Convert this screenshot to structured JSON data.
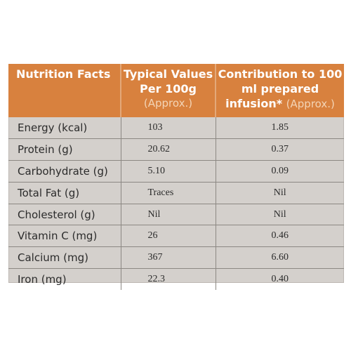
{
  "headers": {
    "col1": "Nutrition Facts",
    "col2_main": "Typical Values Per 100g",
    "col2_sub": "(Approx.)",
    "col3_main": "Contribution to 100 ml prepared infusion*",
    "col3_sub": "(Approx.)"
  },
  "rows": [
    {
      "name": "Energy (kcal)",
      "per_100g": "103",
      "per_100ml": "1.85"
    },
    {
      "name": "Protein (g)",
      "per_100g": "20.62",
      "per_100ml": "0.37"
    },
    {
      "name": "Carbohydrate (g)",
      "per_100g": "5.10",
      "per_100ml": "0.09"
    },
    {
      "name": "Total Fat (g)",
      "per_100g": "Traces",
      "per_100ml": "Nil"
    },
    {
      "name": "Cholesterol (g)",
      "per_100g": "Nil",
      "per_100ml": "Nil"
    },
    {
      "name": "Vitamin C (mg)",
      "per_100g": "26",
      "per_100ml": "0.46"
    },
    {
      "name": "Calcium (mg)",
      "per_100g": "367",
      "per_100ml": "6.60"
    },
    {
      "name": "Iron (mg)",
      "per_100g": "22.3",
      "per_100ml": "0.40"
    }
  ],
  "colors": {
    "header_bg": "#d8813e",
    "header_text": "#ffffff",
    "body_bg": "#d4d0cc",
    "grid": "#8c8883"
  }
}
